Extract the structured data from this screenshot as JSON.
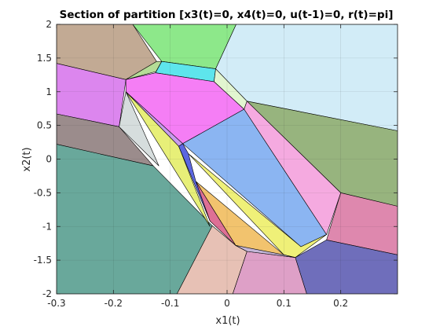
{
  "chart_data": {
    "type": "polygon-partition",
    "title": "Section of partition [x3(t)=0, x4(t)=0, u(t-1)=0, r(t)=pi]",
    "xlabel": "x1(t)",
    "ylabel": "x2(t)",
    "xlim": [
      -0.3,
      0.3
    ],
    "ylim": [
      -2,
      2
    ],
    "xticks": [
      -0.3,
      -0.2,
      -0.1,
      0,
      0.1,
      0.2
    ],
    "xtick_labels": [
      "-0.3",
      "-0.2",
      "-0.1",
      "0",
      "0.1",
      "0.2"
    ],
    "yticks": [
      -2,
      -1.5,
      -1,
      -0.5,
      0,
      0.5,
      1,
      1.5,
      2
    ],
    "ytick_labels": [
      "-2",
      "-1.5",
      "-1",
      "-0.5",
      "0",
      "0.5",
      "1",
      "1.5",
      "2"
    ],
    "grid": true,
    "regions": [
      {
        "color": "#c2aa94",
        "points": [
          [
            -0.3,
            2
          ],
          [
            -0.166,
            2
          ],
          [
            -0.124,
            1.45
          ],
          [
            -0.178,
            1.18
          ],
          [
            -0.3,
            1.42
          ]
        ]
      },
      {
        "color": "#8de88a",
        "points": [
          [
            -0.166,
            2
          ],
          [
            0.016,
            2
          ],
          [
            -0.02,
            1.34
          ],
          [
            -0.115,
            1.45
          ]
        ]
      },
      {
        "color": "#d2ecf7",
        "points": [
          [
            0.016,
            2
          ],
          [
            0.3,
            2
          ],
          [
            0.3,
            0.42
          ],
          [
            0.035,
            0.86
          ],
          [
            -0.02,
            1.34
          ]
        ]
      },
      {
        "color": "#b5dc96",
        "points": [
          [
            -0.124,
            1.45
          ],
          [
            -0.115,
            1.45
          ],
          [
            -0.125,
            1.3
          ],
          [
            -0.178,
            1.18
          ]
        ]
      },
      {
        "color": "#5ee5ec",
        "points": [
          [
            -0.115,
            1.45
          ],
          [
            -0.02,
            1.34
          ],
          [
            -0.023,
            1.15
          ],
          [
            -0.126,
            1.28
          ]
        ]
      },
      {
        "color": "#dc86ee",
        "points": [
          [
            -0.3,
            1.42
          ],
          [
            -0.178,
            1.18
          ],
          [
            -0.19,
            0.48
          ],
          [
            -0.3,
            0.67
          ]
        ]
      },
      {
        "color": "#f57ef5",
        "points": [
          [
            -0.178,
            1.18
          ],
          [
            -0.126,
            1.28
          ],
          [
            -0.023,
            1.15
          ],
          [
            0.03,
            0.74
          ],
          [
            -0.078,
            0.23
          ],
          [
            -0.178,
            1.0
          ]
        ]
      },
      {
        "color": "#e2f5d0",
        "points": [
          [
            -0.02,
            1.34
          ],
          [
            0.035,
            0.86
          ],
          [
            0.03,
            0.74
          ],
          [
            -0.023,
            1.15
          ]
        ]
      },
      {
        "color": "#c89bef",
        "points": [
          [
            -0.178,
            1.0
          ],
          [
            -0.078,
            0.23
          ],
          [
            -0.085,
            0.19
          ]
        ]
      },
      {
        "color": "#9b8c8c",
        "points": [
          [
            -0.3,
            0.67
          ],
          [
            -0.19,
            0.48
          ],
          [
            -0.13,
            -0.1
          ],
          [
            -0.3,
            0.22
          ]
        ]
      },
      {
        "color": "#d6dddd",
        "points": [
          [
            -0.19,
            0.48
          ],
          [
            -0.178,
            1.0
          ],
          [
            -0.12,
            -0.1
          ]
        ]
      },
      {
        "color": "#69a89b",
        "points": [
          [
            -0.3,
            0.22
          ],
          [
            -0.13,
            -0.1
          ],
          [
            -0.026,
            -0.99
          ],
          [
            -0.088,
            -2
          ],
          [
            -0.3,
            -2
          ]
        ]
      },
      {
        "color": "#e7ef78",
        "points": [
          [
            -0.178,
            1.0
          ],
          [
            -0.085,
            0.19
          ],
          [
            -0.03,
            -1.0
          ]
        ]
      },
      {
        "color": "#8bb5f2",
        "points": [
          [
            -0.078,
            0.23
          ],
          [
            0.03,
            0.74
          ],
          [
            0.175,
            -1.12
          ],
          [
            0.13,
            -1.3
          ]
        ]
      },
      {
        "color": "#97b47e",
        "points": [
          [
            0.035,
            0.86
          ],
          [
            0.3,
            0.42
          ],
          [
            0.3,
            -0.7
          ],
          [
            0.2,
            -0.5
          ]
        ]
      },
      {
        "color": "#f5aae0",
        "points": [
          [
            0.03,
            0.74
          ],
          [
            0.035,
            0.86
          ],
          [
            0.2,
            -0.5
          ],
          [
            0.175,
            -1.12
          ]
        ]
      },
      {
        "color": "#de88ae",
        "points": [
          [
            0.2,
            -0.5
          ],
          [
            0.3,
            -0.7
          ],
          [
            0.3,
            -1.42
          ],
          [
            0.175,
            -1.2
          ]
        ]
      },
      {
        "color": "#6f6ebb",
        "points": [
          [
            0.175,
            -1.2
          ],
          [
            0.3,
            -1.42
          ],
          [
            0.3,
            -2
          ],
          [
            0.14,
            -2
          ],
          [
            0.12,
            -1.46
          ]
        ]
      },
      {
        "color": "#dea0c7",
        "points": [
          [
            0.12,
            -1.46
          ],
          [
            0.14,
            -2
          ],
          [
            0.01,
            -2
          ],
          [
            0.035,
            -1.37
          ]
        ]
      },
      {
        "color": "#e7c1b5",
        "points": [
          [
            -0.088,
            -2
          ],
          [
            0.01,
            -2
          ],
          [
            0.035,
            -1.37
          ],
          [
            0.015,
            -1.28
          ],
          [
            -0.026,
            -0.99
          ]
        ]
      },
      {
        "color": "#eff078",
        "points": [
          [
            -0.068,
            0.08
          ],
          [
            0.13,
            -1.3
          ],
          [
            0.175,
            -1.12
          ],
          [
            0.12,
            -1.46
          ],
          [
            0.1,
            -1.42
          ]
        ]
      },
      {
        "color": "#f2c36e",
        "points": [
          [
            -0.055,
            -0.33
          ],
          [
            0.1,
            -1.42
          ],
          [
            0.035,
            -1.37
          ],
          [
            0.015,
            -1.28
          ]
        ]
      },
      {
        "color": "#c4b6d8",
        "points": [
          [
            0.015,
            -1.28
          ],
          [
            0.035,
            -1.37
          ],
          [
            0.12,
            -1.46
          ],
          [
            0.1,
            -1.42
          ]
        ]
      },
      {
        "color": "#5c67e0",
        "points": [
          [
            -0.085,
            0.19
          ],
          [
            -0.078,
            0.23
          ],
          [
            -0.068,
            0.08
          ],
          [
            -0.055,
            -0.33
          ],
          [
            -0.03,
            -0.92
          ]
        ]
      },
      {
        "color": "#de6f95",
        "points": [
          [
            -0.055,
            -0.33
          ],
          [
            0.015,
            -1.28
          ],
          [
            -0.03,
            -0.92
          ]
        ]
      }
    ]
  }
}
